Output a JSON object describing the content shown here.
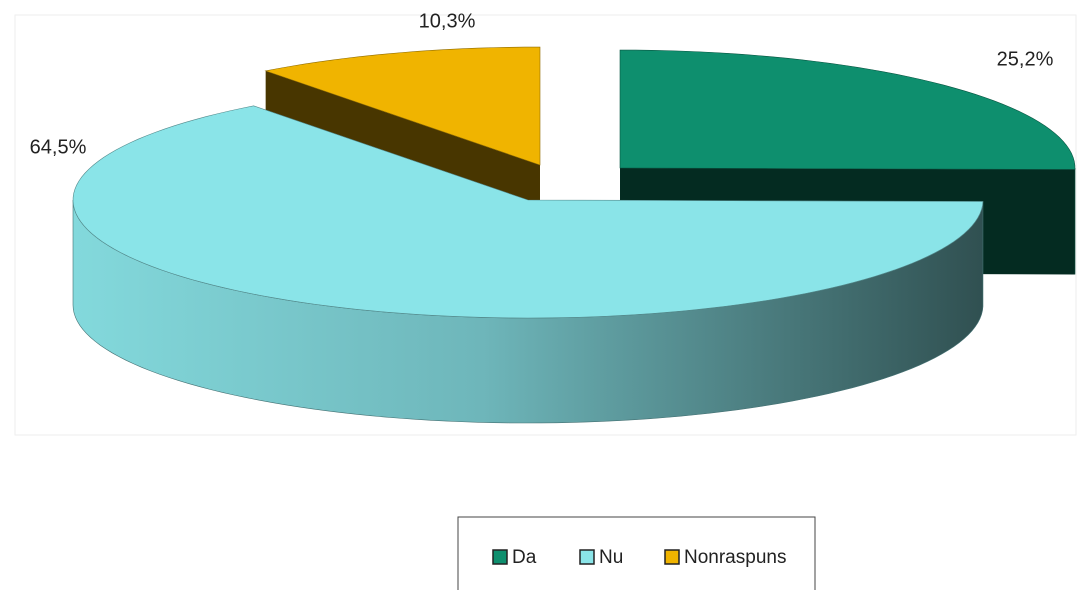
{
  "chart_data": {
    "type": "pie",
    "three_d": true,
    "categories": [
      "Da",
      "Nu",
      "Nonraspuns"
    ],
    "values": [
      25.2,
      64.5,
      10.3
    ],
    "value_labels": [
      "25,2%",
      "64,5%",
      "10,3%"
    ],
    "colors": [
      "#0e8f6e",
      "#8ae4e8",
      "#f0b400"
    ],
    "legend": "bottom"
  }
}
